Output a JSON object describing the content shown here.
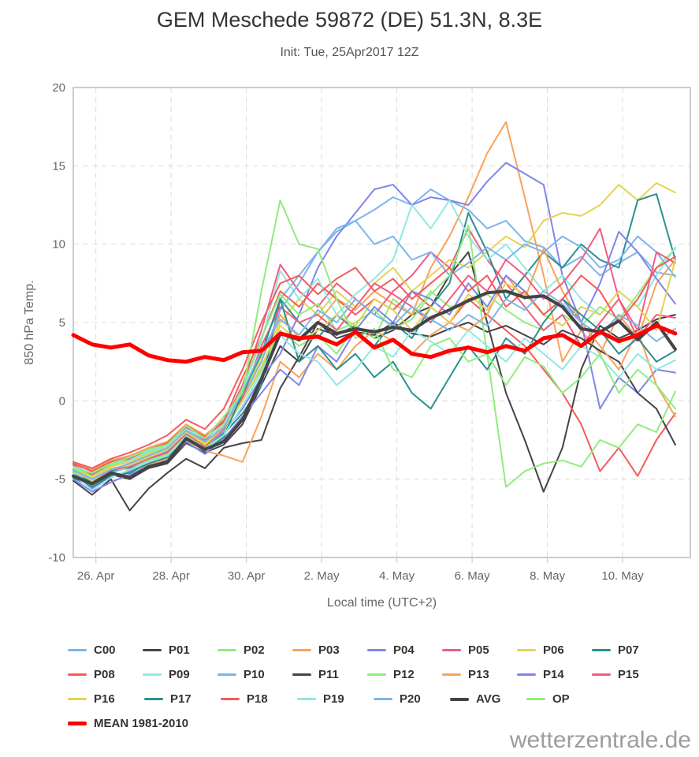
{
  "header": {
    "title": "GEM Meschede 59872 (DE) 51.3N, 8.3E",
    "subtitle": "Init: Tue, 25Apr2017 12Z"
  },
  "watermark": "wetterzentrale.de",
  "legend": {
    "row_chunks": [
      8,
      8,
      7,
      1
    ]
  },
  "chart_data": {
    "type": "line",
    "title": "GEM Meschede 59872 (DE) 51.3N, 8.3E",
    "subtitle": "Init: Tue, 25Apr2017 12Z",
    "xlabel": "Local time (UTC+2)",
    "ylabel": "850 hPa Temp.",
    "ylim": [
      -10,
      20
    ],
    "y_ticks": [
      20,
      15,
      10,
      5,
      0,
      -5,
      -10
    ],
    "xlim_days": [
      0,
      16.4
    ],
    "x_days_per_point": 0.5,
    "x_ticks": [
      {
        "pos_days": 0.6,
        "label": "26. Apr"
      },
      {
        "pos_days": 2.6,
        "label": "28. Apr"
      },
      {
        "pos_days": 4.6,
        "label": "30. Apr"
      },
      {
        "pos_days": 6.6,
        "label": "2. May"
      },
      {
        "pos_days": 8.6,
        "label": "4. May"
      },
      {
        "pos_days": 10.6,
        "label": "6. May"
      },
      {
        "pos_days": 12.6,
        "label": "8. May"
      },
      {
        "pos_days": 14.6,
        "label": "10. May"
      }
    ],
    "grid": {
      "dash_color": "#dcdcdc",
      "border_color": "#cccccc",
      "tick_color": "#ccd6eb",
      "label_color": "#666666"
    },
    "series": [
      {
        "name": "C00",
        "color": "#7cb5ec",
        "width": 2,
        "z": 0,
        "values": [
          -4.4,
          -5.2,
          -4.5,
          -4.0,
          -3.6,
          -3.2,
          -2.0,
          -2.8,
          -1.5,
          0.5,
          3.0,
          6.5,
          8.0,
          9.5,
          10.8,
          11.5,
          12.2,
          13.0,
          12.5,
          13.5,
          12.8,
          12.2,
          11.0,
          11.5,
          10.2,
          9.8,
          8.5,
          9.2,
          8.0,
          8.8,
          9.5,
          8.2,
          8.0
        ]
      },
      {
        "name": "P01",
        "color": "#434348",
        "width": 2,
        "z": 0,
        "values": [
          -4.9,
          -5.5,
          -4.7,
          -5.0,
          -4.3,
          -4.0,
          -2.7,
          -3.3,
          -2.8,
          -1.5,
          1.0,
          3.5,
          2.5,
          4.6,
          4.2,
          4.8,
          4.0,
          4.5,
          5.5,
          6.0,
          8.0,
          9.5,
          5.0,
          0.5,
          -2.5,
          -5.8,
          -3.0,
          2.0,
          4.8,
          4.0,
          4.5,
          5.2,
          5.5
        ]
      },
      {
        "name": "P02",
        "color": "#90ed7d",
        "width": 2,
        "z": 0,
        "values": [
          -4.2,
          -4.8,
          -4.1,
          -3.8,
          -3.3,
          -2.9,
          -1.8,
          -2.6,
          -1.9,
          0.0,
          2.0,
          4.5,
          3.5,
          4.2,
          3.0,
          4.8,
          4.0,
          6.5,
          5.5,
          7.0,
          6.0,
          6.3,
          6.8,
          5.8,
          5.0,
          4.5,
          5.5,
          4.8,
          6.0,
          5.2,
          6.8,
          8.5,
          9.7
        ]
      },
      {
        "name": "P03",
        "color": "#f7a35c",
        "width": 2,
        "z": 0,
        "values": [
          -4.0,
          -4.4,
          -3.8,
          -3.5,
          -3.0,
          -2.6,
          -1.5,
          -2.2,
          -1.2,
          0.5,
          2.5,
          5.5,
          4.0,
          5.0,
          6.5,
          5.8,
          7.0,
          6.2,
          5.5,
          8.5,
          10.5,
          13.0,
          15.8,
          17.8,
          13.0,
          8.0,
          2.5,
          4.5,
          3.0,
          5.5,
          4.0,
          7.5,
          9.0
        ]
      },
      {
        "name": "P04",
        "color": "#8085e9",
        "width": 2,
        "z": 0,
        "values": [
          -4.5,
          -5.6,
          -4.8,
          -4.5,
          -3.9,
          -3.5,
          -2.3,
          -3.1,
          -2.0,
          -0.5,
          1.5,
          3.0,
          5.5,
          8.5,
          10.5,
          12.0,
          13.5,
          13.8,
          12.5,
          13.0,
          12.8,
          12.5,
          14.0,
          15.2,
          14.5,
          13.8,
          8.0,
          5.0,
          -0.5,
          1.5,
          0.5,
          2.0,
          1.8
        ]
      },
      {
        "name": "P05",
        "color": "#f15c80",
        "width": 2,
        "z": 0,
        "values": [
          -4.1,
          -4.7,
          -4.0,
          -3.7,
          -3.2,
          -2.8,
          -1.7,
          -2.5,
          -1.4,
          1.0,
          4.5,
          8.7,
          7.0,
          6.0,
          7.5,
          6.5,
          5.5,
          7.0,
          8.0,
          9.5,
          8.5,
          11.0,
          9.0,
          7.5,
          6.0,
          4.5,
          5.5,
          3.5,
          5.0,
          6.5,
          4.0,
          5.5,
          5.3
        ]
      },
      {
        "name": "P06",
        "color": "#e4d354",
        "width": 2,
        "z": 0,
        "values": [
          -4.3,
          -4.9,
          -4.2,
          -3.9,
          -3.4,
          -3.0,
          -1.9,
          -2.7,
          -1.6,
          0.3,
          2.8,
          5.0,
          6.5,
          5.5,
          7.0,
          6.0,
          7.5,
          8.5,
          7.0,
          8.0,
          9.0,
          8.5,
          9.5,
          10.5,
          9.8,
          11.5,
          12.0,
          11.8,
          12.5,
          13.8,
          12.8,
          13.9,
          13.3
        ]
      },
      {
        "name": "P07",
        "color": "#2b908f",
        "width": 2,
        "z": 0,
        "values": [
          -4.6,
          -5.2,
          -4.5,
          -4.3,
          -3.7,
          -3.3,
          -2.2,
          -3.0,
          -2.1,
          -0.8,
          1.0,
          6.5,
          5.0,
          4.0,
          5.5,
          4.5,
          3.5,
          5.0,
          4.0,
          6.0,
          7.5,
          12.0,
          9.5,
          6.5,
          8.0,
          9.5,
          8.5,
          10.0,
          9.0,
          8.5,
          12.8,
          13.2,
          9.0
        ]
      },
      {
        "name": "P08",
        "color": "#f45b5b",
        "width": 2,
        "z": 0,
        "values": [
          -4.0,
          -4.5,
          -3.9,
          -3.6,
          -3.1,
          -2.7,
          -1.6,
          -2.3,
          -1.3,
          1.5,
          4.0,
          7.0,
          6.0,
          7.5,
          6.5,
          5.5,
          6.5,
          5.8,
          7.0,
          6.0,
          5.0,
          6.5,
          5.5,
          4.5,
          3.5,
          2.0,
          0.5,
          -1.5,
          -4.5,
          -3.0,
          -4.8,
          -2.5,
          -0.8
        ]
      },
      {
        "name": "P09",
        "color": "#91e8e1",
        "width": 2,
        "z": 0,
        "values": [
          -4.2,
          -4.6,
          -4.0,
          -3.8,
          -3.2,
          -2.9,
          -1.8,
          -2.4,
          -1.5,
          0.8,
          3.8,
          8.3,
          6.5,
          7.8,
          5.5,
          6.8,
          7.8,
          9.0,
          12.5,
          11.0,
          12.8,
          10.5,
          9.0,
          10.0,
          8.5,
          7.0,
          8.0,
          6.5,
          5.5,
          7.0,
          6.0,
          8.0,
          9.8
        ]
      },
      {
        "name": "P10",
        "color": "#7cb5ec",
        "width": 2,
        "z": 0,
        "values": [
          -4.5,
          -5.4,
          -4.6,
          -4.2,
          -3.8,
          -3.4,
          -2.1,
          -2.9,
          -1.9,
          0.2,
          2.5,
          5.8,
          7.5,
          9.5,
          11.0,
          11.5,
          10.0,
          10.5,
          9.0,
          9.5,
          8.0,
          8.8,
          9.8,
          9.0,
          10.0,
          9.5,
          10.5,
          9.8,
          8.5,
          9.0,
          10.5,
          9.5,
          7.9
        ]
      },
      {
        "name": "P11",
        "color": "#434348",
        "width": 2,
        "z": 0,
        "values": [
          -5.1,
          -6.0,
          -5.0,
          -7.0,
          -5.6,
          -4.6,
          -3.7,
          -4.3,
          -3.0,
          -2.7,
          -2.5,
          0.8,
          2.8,
          5.0,
          4.0,
          4.4,
          4.2,
          5.0,
          4.3,
          4.1,
          4.6,
          5.0,
          4.4,
          4.8,
          4.2,
          3.6,
          4.5,
          4.0,
          3.2,
          2.5,
          0.5,
          -0.5,
          -2.8
        ]
      },
      {
        "name": "P12",
        "color": "#90ed7d",
        "width": 2,
        "z": 0,
        "values": [
          -4.6,
          -5.0,
          -4.3,
          -4.4,
          -3.8,
          -3.4,
          -2.2,
          -3.0,
          -2.2,
          0.8,
          4.0,
          6.8,
          5.5,
          6.2,
          4.5,
          5.0,
          5.8,
          4.6,
          5.2,
          6.8,
          8.0,
          11.2,
          3.0,
          -5.5,
          -4.5,
          -4.0,
          -3.8,
          -4.2,
          -2.5,
          -3.0,
          -1.5,
          -2.0,
          0.6
        ]
      },
      {
        "name": "P13",
        "color": "#f7a35c",
        "width": 2,
        "z": 0,
        "values": [
          -4.7,
          -5.4,
          -4.6,
          -4.8,
          -4.1,
          -3.7,
          -2.5,
          -3.2,
          -3.5,
          -3.9,
          -1.0,
          2.5,
          1.5,
          3.0,
          2.0,
          3.5,
          4.5,
          3.8,
          3.0,
          4.2,
          5.0,
          4.5,
          5.5,
          8.0,
          6.5,
          9.7,
          7.0,
          5.0,
          3.5,
          2.0,
          4.5,
          1.0,
          -1.0
        ]
      },
      {
        "name": "P14",
        "color": "#8085e9",
        "width": 2,
        "z": 0,
        "values": [
          -5.0,
          -5.8,
          -5.2,
          -4.7,
          -4.2,
          -3.8,
          -2.6,
          -3.4,
          -2.4,
          -1.0,
          0.5,
          2.0,
          1.0,
          3.5,
          2.5,
          4.5,
          6.0,
          5.0,
          7.0,
          6.5,
          5.5,
          7.5,
          6.0,
          8.0,
          7.0,
          5.5,
          6.5,
          5.0,
          7.5,
          10.8,
          9.5,
          7.8,
          6.2
        ]
      },
      {
        "name": "P15",
        "color": "#f15c80",
        "width": 2,
        "z": 0,
        "values": [
          -4.8,
          -5.3,
          -4.4,
          -4.2,
          -3.7,
          -3.3,
          -2.1,
          -2.9,
          -1.8,
          0.2,
          3.5,
          6.0,
          5.0,
          5.5,
          4.5,
          6.0,
          7.5,
          6.8,
          6.0,
          5.0,
          6.5,
          8.0,
          7.0,
          9.0,
          8.0,
          6.5,
          7.5,
          9.0,
          11.0,
          6.5,
          4.5,
          9.5,
          8.8
        ]
      },
      {
        "name": "P16",
        "color": "#e4d354",
        "width": 2,
        "z": 0,
        "values": [
          -4.4,
          -5.1,
          -4.3,
          -4.1,
          -3.6,
          -3.1,
          -2.0,
          -2.8,
          -1.7,
          0.0,
          2.2,
          4.8,
          3.8,
          4.5,
          5.5,
          4.8,
          6.5,
          5.8,
          4.5,
          6.0,
          5.0,
          6.8,
          5.8,
          7.5,
          6.8,
          5.5,
          4.8,
          6.0,
          5.5,
          7.0,
          6.0,
          4.5,
          9.0
        ]
      },
      {
        "name": "P17",
        "color": "#2b908f",
        "width": 2,
        "z": 0,
        "values": [
          -4.9,
          -5.5,
          -4.8,
          -4.6,
          -4.0,
          -3.6,
          -2.4,
          -3.2,
          -2.3,
          0.5,
          3.0,
          6.5,
          2.5,
          3.5,
          2.0,
          3.0,
          1.5,
          2.5,
          0.5,
          -0.5,
          1.5,
          3.5,
          2.0,
          4.0,
          3.0,
          5.0,
          6.5,
          5.5,
          4.5,
          3.0,
          4.0,
          2.5,
          3.2
        ]
      },
      {
        "name": "P18",
        "color": "#f45b5b",
        "width": 2,
        "z": 0,
        "values": [
          -3.9,
          -4.3,
          -3.7,
          -3.3,
          -2.8,
          -2.2,
          -1.2,
          -1.8,
          -0.5,
          2.0,
          5.0,
          7.5,
          8.0,
          6.8,
          7.8,
          8.5,
          7.0,
          7.8,
          6.5,
          7.5,
          8.5,
          7.0,
          8.0,
          6.0,
          7.0,
          5.5,
          6.5,
          8.0,
          7.0,
          5.0,
          6.5,
          8.5,
          9.2
        ]
      },
      {
        "name": "P19",
        "color": "#91e8e1",
        "width": 2,
        "z": 0,
        "values": [
          -4.7,
          -5.7,
          -4.9,
          -4.4,
          -3.9,
          -3.5,
          -2.3,
          -3.1,
          -2.2,
          -0.3,
          1.8,
          4.2,
          3.0,
          2.5,
          1.0,
          2.0,
          3.5,
          2.8,
          4.5,
          3.8,
          3.0,
          4.5,
          3.5,
          2.5,
          4.0,
          3.0,
          2.0,
          3.5,
          2.8,
          1.5,
          3.0,
          2.0,
          2.6
        ]
      },
      {
        "name": "P20",
        "color": "#7cb5ec",
        "width": 2,
        "z": 0,
        "values": [
          -4.4,
          -5.0,
          -4.4,
          -4.0,
          -3.5,
          -3.0,
          -1.9,
          -2.6,
          -1.7,
          0.6,
          3.2,
          5.2,
          4.2,
          5.8,
          5.0,
          6.5,
          5.5,
          4.8,
          6.0,
          5.2,
          4.5,
          5.5,
          4.8,
          6.5,
          5.8,
          7.0,
          6.2,
          5.0,
          4.2,
          5.5,
          4.8,
          3.8,
          4.6
        ]
      },
      {
        "name": "AVG",
        "color": "#434348",
        "width": 4,
        "z": 1,
        "values": [
          -4.8,
          -5.3,
          -4.6,
          -4.9,
          -4.2,
          -3.9,
          -2.4,
          -3.1,
          -2.6,
          -1.2,
          1.4,
          4.3,
          3.9,
          5.0,
          4.3,
          4.6,
          4.4,
          4.7,
          4.5,
          5.3,
          5.8,
          6.4,
          6.9,
          7.0,
          6.6,
          6.7,
          6.0,
          4.6,
          4.4,
          5.1,
          3.9,
          5.0,
          3.3
        ]
      },
      {
        "name": "OP",
        "color": "#90ed7d",
        "width": 2,
        "z": 0,
        "values": [
          -4.3,
          -4.6,
          -4.0,
          -3.6,
          -3.1,
          -2.8,
          -1.6,
          -2.4,
          -1.0,
          0.5,
          7.0,
          12.8,
          10.0,
          9.7,
          6.5,
          4.0,
          4.6,
          2.0,
          1.5,
          3.5,
          4.0,
          2.5,
          3.0,
          1.0,
          2.8,
          2.2,
          0.5,
          1.5,
          3.0,
          0.5,
          2.0,
          1.0,
          -0.5
        ]
      },
      {
        "name": "MEAN 1981-2010",
        "color": "#ff0000",
        "width": 5,
        "z": 2,
        "values": [
          4.2,
          3.6,
          3.4,
          3.6,
          2.9,
          2.6,
          2.5,
          2.8,
          2.6,
          3.1,
          3.2,
          4.3,
          4.0,
          4.1,
          3.6,
          4.4,
          3.4,
          3.9,
          3.0,
          2.8,
          3.2,
          3.4,
          3.1,
          3.5,
          3.2,
          4.0,
          4.2,
          3.5,
          4.4,
          3.8,
          4.2,
          4.8,
          4.3
        ]
      }
    ]
  }
}
